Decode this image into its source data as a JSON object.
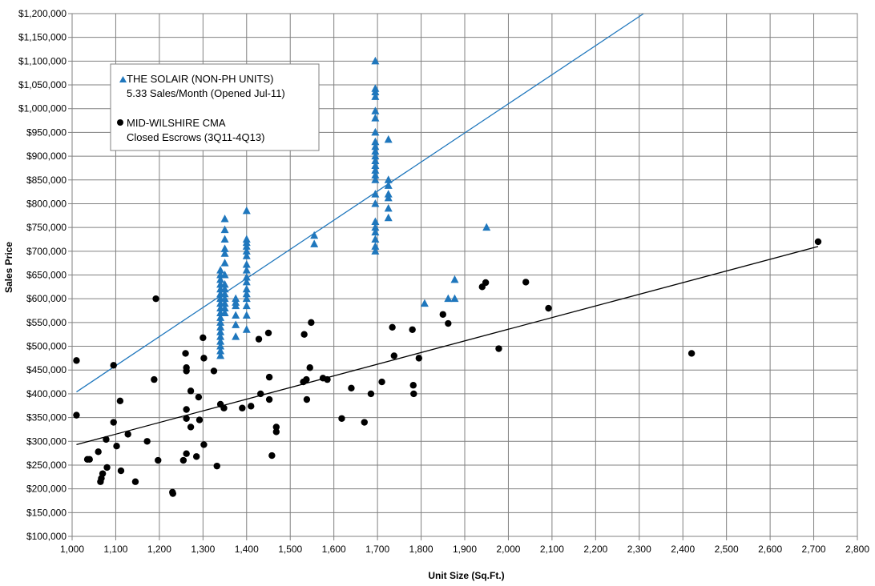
{
  "chart_data": {
    "type": "scatter",
    "title": "",
    "xlabel": "Unit Size (Sq.Ft.)",
    "ylabel": "Sales Price",
    "xlim": [
      1000,
      2800
    ],
    "ylim": [
      100000,
      1200000
    ],
    "x_ticks": [
      1000,
      1100,
      1200,
      1300,
      1400,
      1500,
      1600,
      1700,
      1800,
      1900,
      2000,
      2100,
      2200,
      2300,
      2400,
      2500,
      2600,
      2700,
      2800
    ],
    "x_tick_labels": [
      "1,000",
      "1,100",
      "1,200",
      "1,300",
      "1,400",
      "1,500",
      "1,600",
      "1,700",
      "1,800",
      "1,900",
      "2,000",
      "2,100",
      "2,200",
      "2,300",
      "2,400",
      "2,500",
      "2,600",
      "2,700",
      "2,800"
    ],
    "y_ticks": [
      100000,
      150000,
      200000,
      250000,
      300000,
      350000,
      400000,
      450000,
      500000,
      550000,
      600000,
      650000,
      700000,
      750000,
      800000,
      850000,
      900000,
      950000,
      1000000,
      1050000,
      1100000,
      1150000,
      1200000
    ],
    "y_tick_labels": [
      "$100,000",
      "$150,000",
      "$200,000",
      "$250,000",
      "$300,000",
      "$350,000",
      "$400,000",
      "$450,000",
      "$500,000",
      "$550,000",
      "$600,000",
      "$650,000",
      "$700,000",
      "$750,000",
      "$800,000",
      "$850,000",
      "$900,000",
      "$950,000",
      "$1,000,000",
      "$1,050,000",
      "$1,100,000",
      "$1,150,000",
      "$1,200,000"
    ],
    "grid": true,
    "legend_position": "top-left",
    "series": [
      {
        "name": "THE SOLAIR (NON-PH UNITS)",
        "subtitle": "5.33 Sales/Month (Opened Jul-11)",
        "marker": "triangle",
        "color": "#1f77bd",
        "points": [
          [
            1340,
            480000
          ],
          [
            1340,
            490000
          ],
          [
            1340,
            500000
          ],
          [
            1340,
            510000
          ],
          [
            1340,
            520000
          ],
          [
            1340,
            530000
          ],
          [
            1340,
            540000
          ],
          [
            1340,
            550000
          ],
          [
            1340,
            560000
          ],
          [
            1340,
            570000
          ],
          [
            1340,
            580000
          ],
          [
            1340,
            590000
          ],
          [
            1340,
            600000
          ],
          [
            1340,
            610000
          ],
          [
            1340,
            620000
          ],
          [
            1340,
            630000
          ],
          [
            1340,
            640000
          ],
          [
            1340,
            650000
          ],
          [
            1340,
            660000
          ],
          [
            1350,
            570000
          ],
          [
            1350,
            580000
          ],
          [
            1350,
            590000
          ],
          [
            1350,
            600000
          ],
          [
            1350,
            610000
          ],
          [
            1350,
            620000
          ],
          [
            1350,
            630000
          ],
          [
            1350,
            650000
          ],
          [
            1350,
            675000
          ],
          [
            1350,
            695000
          ],
          [
            1350,
            705000
          ],
          [
            1350,
            725000
          ],
          [
            1350,
            745000
          ],
          [
            1350,
            768000
          ],
          [
            1375,
            520000
          ],
          [
            1375,
            545000
          ],
          [
            1375,
            565000
          ],
          [
            1375,
            585000
          ],
          [
            1375,
            592000
          ],
          [
            1375,
            600000
          ],
          [
            1400,
            535000
          ],
          [
            1400,
            565000
          ],
          [
            1400,
            585000
          ],
          [
            1400,
            600000
          ],
          [
            1400,
            610000
          ],
          [
            1400,
            620000
          ],
          [
            1400,
            635000
          ],
          [
            1400,
            645000
          ],
          [
            1400,
            660000
          ],
          [
            1400,
            672000
          ],
          [
            1400,
            690000
          ],
          [
            1400,
            700000
          ],
          [
            1400,
            710000
          ],
          [
            1400,
            718000
          ],
          [
            1400,
            725000
          ],
          [
            1400,
            785000
          ],
          [
            1555,
            715000
          ],
          [
            1555,
            733000
          ],
          [
            1695,
            700000
          ],
          [
            1695,
            710000
          ],
          [
            1695,
            725000
          ],
          [
            1695,
            740000
          ],
          [
            1695,
            750000
          ],
          [
            1695,
            762000
          ],
          [
            1695,
            800000
          ],
          [
            1695,
            820000
          ],
          [
            1695,
            850000
          ],
          [
            1695,
            860000
          ],
          [
            1695,
            870000
          ],
          [
            1695,
            880000
          ],
          [
            1695,
            890000
          ],
          [
            1695,
            900000
          ],
          [
            1695,
            910000
          ],
          [
            1695,
            920000
          ],
          [
            1695,
            930000
          ],
          [
            1695,
            950000
          ],
          [
            1695,
            980000
          ],
          [
            1695,
            995000
          ],
          [
            1695,
            1025000
          ],
          [
            1695,
            1035000
          ],
          [
            1695,
            1042000
          ],
          [
            1695,
            1100000
          ],
          [
            1725,
            770000
          ],
          [
            1725,
            790000
          ],
          [
            1725,
            812000
          ],
          [
            1725,
            820000
          ],
          [
            1725,
            838000
          ],
          [
            1725,
            850000
          ],
          [
            1725,
            935000
          ],
          [
            1808,
            590000
          ],
          [
            1862,
            600000
          ],
          [
            1877,
            600000
          ],
          [
            1877,
            640000
          ],
          [
            1950,
            750000
          ]
        ],
        "trend": {
          "x": [
            1010,
            2310
          ],
          "y": [
            404000,
            1200000
          ]
        }
      },
      {
        "name": "MID-WILSHIRE CMA",
        "subtitle": "Closed Escrows (3Q11-4Q13)",
        "marker": "circle",
        "color": "#000000",
        "points": [
          [
            1010,
            470000
          ],
          [
            1010,
            355000
          ],
          [
            1035,
            262000
          ],
          [
            1040,
            262000
          ],
          [
            1060,
            278000
          ],
          [
            1065,
            215000
          ],
          [
            1067,
            222000
          ],
          [
            1070,
            232000
          ],
          [
            1078,
            304000
          ],
          [
            1080,
            245000
          ],
          [
            1095,
            340000
          ],
          [
            1095,
            460000
          ],
          [
            1102,
            290000
          ],
          [
            1110,
            385000
          ],
          [
            1112,
            238000
          ],
          [
            1128,
            315000
          ],
          [
            1145,
            215000
          ],
          [
            1172,
            300000
          ],
          [
            1188,
            430000
          ],
          [
            1192,
            600000
          ],
          [
            1197,
            260000
          ],
          [
            1230,
            193000
          ],
          [
            1231,
            190000
          ],
          [
            1255,
            260000
          ],
          [
            1260,
            485000
          ],
          [
            1262,
            455000
          ],
          [
            1262,
            448000
          ],
          [
            1262,
            367000
          ],
          [
            1262,
            348000
          ],
          [
            1262,
            274000
          ],
          [
            1272,
            406000
          ],
          [
            1272,
            330000
          ],
          [
            1285,
            268000
          ],
          [
            1290,
            393000
          ],
          [
            1292,
            345000
          ],
          [
            1300,
            518000
          ],
          [
            1302,
            475000
          ],
          [
            1302,
            293000
          ],
          [
            1325,
            448000
          ],
          [
            1332,
            248000
          ],
          [
            1340,
            378000
          ],
          [
            1348,
            370000
          ],
          [
            1390,
            370000
          ],
          [
            1410,
            374000
          ],
          [
            1428,
            515000
          ],
          [
            1432,
            400000
          ],
          [
            1450,
            528000
          ],
          [
            1452,
            388000
          ],
          [
            1452,
            435000
          ],
          [
            1458,
            270000
          ],
          [
            1468,
            320000
          ],
          [
            1468,
            330000
          ],
          [
            1530,
            425000
          ],
          [
            1532,
            525000
          ],
          [
            1537,
            430000
          ],
          [
            1538,
            388000
          ],
          [
            1545,
            455000
          ],
          [
            1548,
            550000
          ],
          [
            1575,
            433000
          ],
          [
            1585,
            430000
          ],
          [
            1618,
            348000
          ],
          [
            1640,
            412000
          ],
          [
            1670,
            340000
          ],
          [
            1685,
            400000
          ],
          [
            1710,
            425000
          ],
          [
            1734,
            540000
          ],
          [
            1738,
            480000
          ],
          [
            1780,
            535000
          ],
          [
            1782,
            418000
          ],
          [
            1783,
            400000
          ],
          [
            1795,
            475000
          ],
          [
            1850,
            567000
          ],
          [
            1862,
            548000
          ],
          [
            1940,
            625000
          ],
          [
            1948,
            634000
          ],
          [
            1978,
            495000
          ],
          [
            2040,
            635000
          ],
          [
            2092,
            580000
          ],
          [
            2420,
            485000
          ],
          [
            2710,
            720000
          ]
        ],
        "trend": {
          "x": [
            1010,
            2710
          ],
          "y": [
            293000,
            710000
          ]
        }
      }
    ]
  }
}
